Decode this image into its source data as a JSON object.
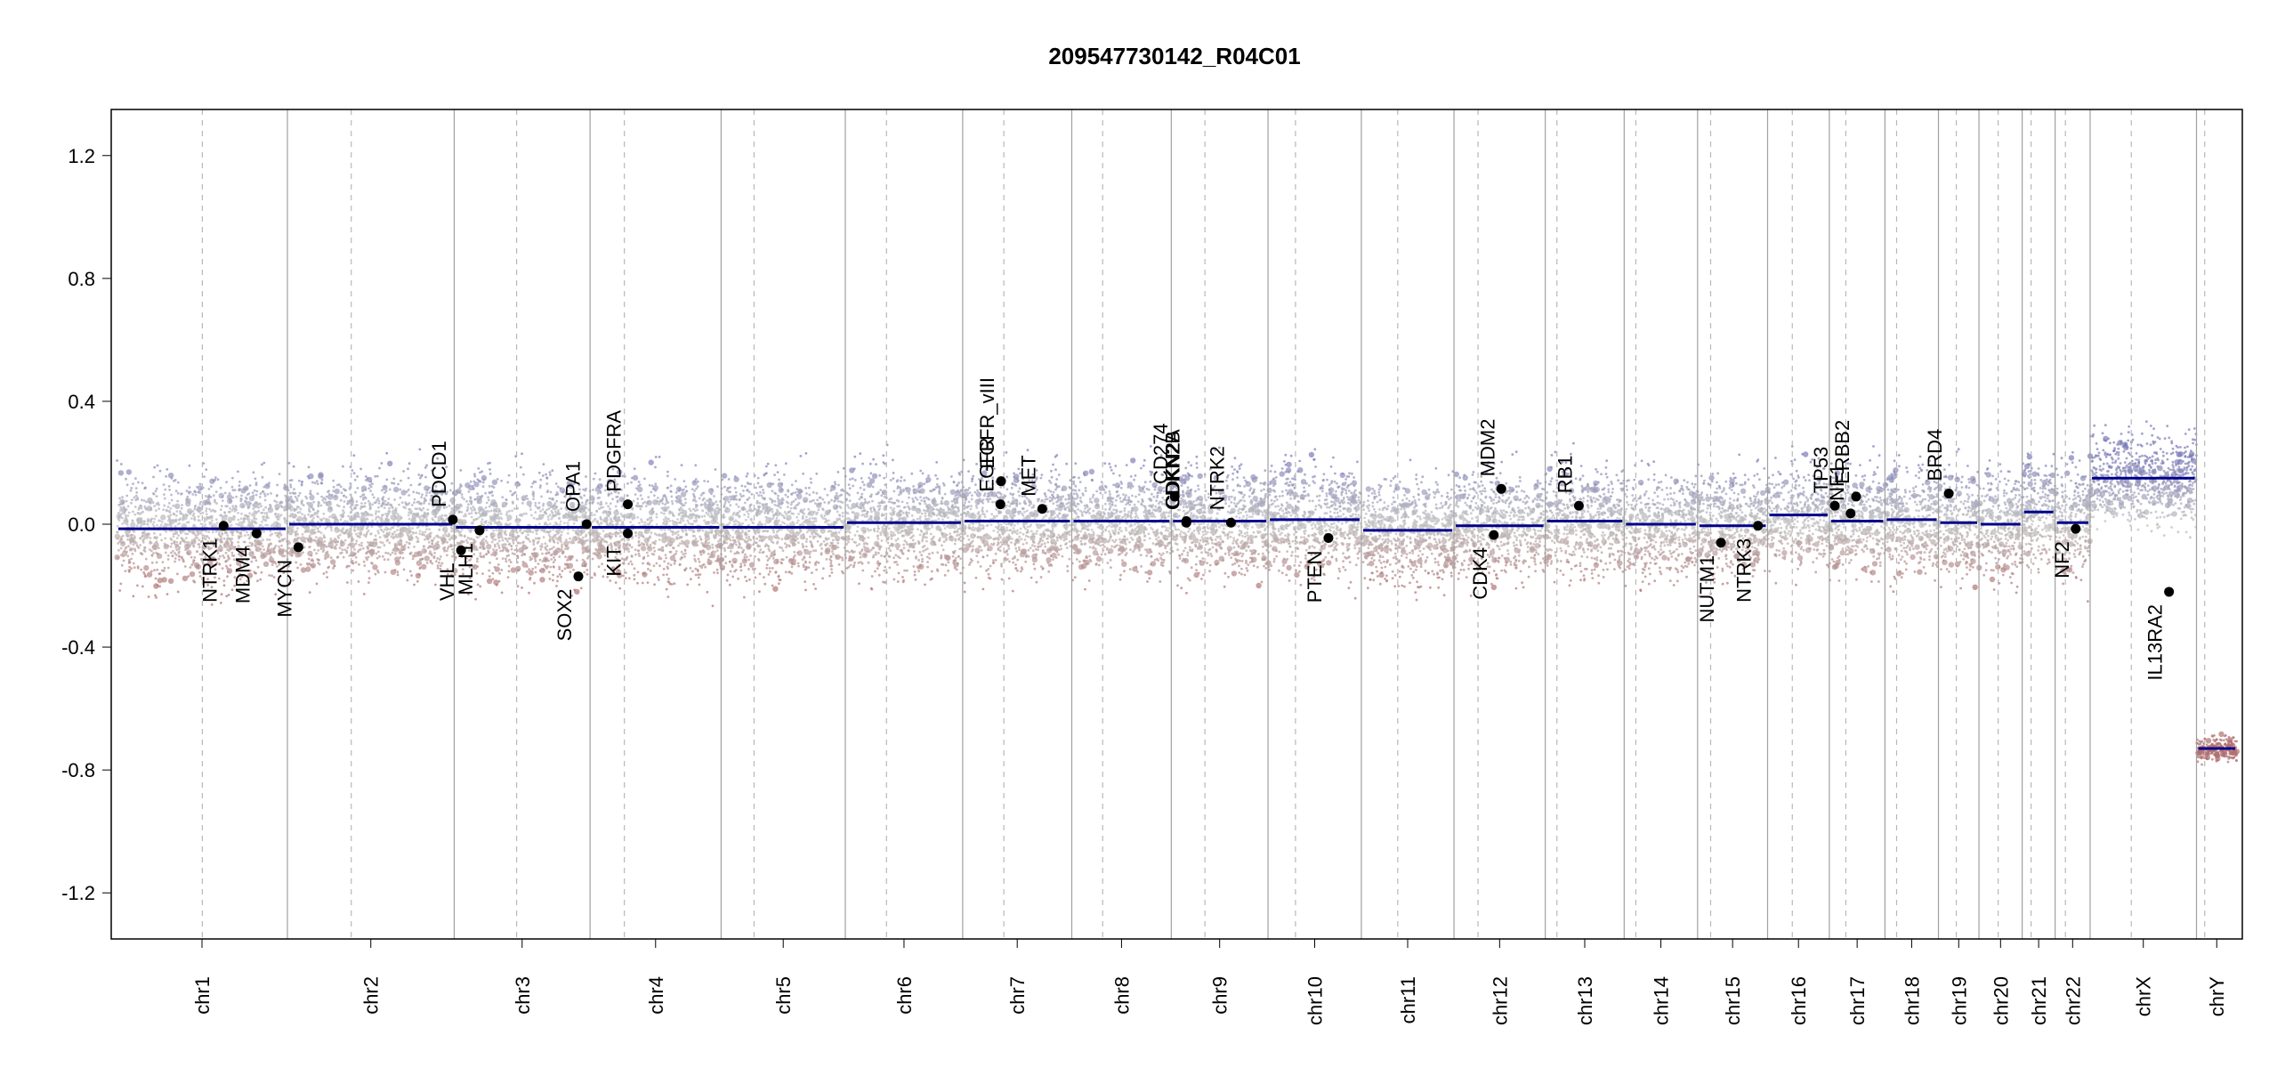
{
  "chart_data": {
    "type": "scatter",
    "title": "209547730142_R04C01",
    "xlabel": "",
    "ylabel": "",
    "ylim": [
      -1.35,
      1.35
    ],
    "yticks": [
      1.2,
      0.8,
      0.4,
      0.0,
      -0.4,
      -0.8,
      -1.2
    ],
    "ytick_labels": [
      "1.2",
      "0.8",
      "0.4",
      "0.0",
      "-0.4",
      "-0.8",
      "-1.2"
    ],
    "grid": false,
    "colors": {
      "segment": "#00008b",
      "gain_points": "#7b7bb8",
      "loss_points": "#b07070",
      "neutral_points": "#c0c0c0",
      "chrom_boundary": "#a0a0a0",
      "centromere": "#b8b8b8",
      "gene_marker": "#000000"
    },
    "chromosomes": [
      {
        "name": "chr1",
        "length": 249,
        "centromere": 125,
        "segment_mean": -0.015
      },
      {
        "name": "chr2",
        "length": 243,
        "centromere": 93,
        "segment_mean": 0.0
      },
      {
        "name": "chr3",
        "length": 198,
        "centromere": 91,
        "segment_mean": -0.01
      },
      {
        "name": "chr4",
        "length": 191,
        "centromere": 50,
        "segment_mean": -0.01
      },
      {
        "name": "chr5",
        "length": 181,
        "centromere": 48,
        "segment_mean": -0.01
      },
      {
        "name": "chr6",
        "length": 171,
        "centromere": 60,
        "segment_mean": 0.005
      },
      {
        "name": "chr7",
        "length": 159,
        "centromere": 60,
        "segment_mean": 0.01
      },
      {
        "name": "chr8",
        "length": 145,
        "centromere": 45,
        "segment_mean": 0.01
      },
      {
        "name": "chr9",
        "length": 141,
        "centromere": 49,
        "segment_mean": 0.01
      },
      {
        "name": "chr10",
        "length": 136,
        "centromere": 40,
        "segment_mean": 0.015
      },
      {
        "name": "chr11",
        "length": 135,
        "centromere": 53,
        "segment_mean": -0.02
      },
      {
        "name": "chr12",
        "length": 133,
        "centromere": 35,
        "segment_mean": -0.005
      },
      {
        "name": "chr13",
        "length": 115,
        "centromere": 17,
        "segment_mean": 0.01
      },
      {
        "name": "chr14",
        "length": 107,
        "centromere": 17,
        "segment_mean": 0.0
      },
      {
        "name": "chr15",
        "length": 102,
        "centromere": 19,
        "segment_mean": -0.005
      },
      {
        "name": "chr16",
        "length": 90,
        "centromere": 36,
        "segment_mean": 0.03
      },
      {
        "name": "chr17",
        "length": 81,
        "centromere": 24,
        "segment_mean": 0.01
      },
      {
        "name": "chr18",
        "length": 78,
        "centromere": 17,
        "segment_mean": 0.015
      },
      {
        "name": "chr19",
        "length": 59,
        "centromere": 26,
        "segment_mean": 0.005
      },
      {
        "name": "chr20",
        "length": 63,
        "centromere": 28,
        "segment_mean": 0.0
      },
      {
        "name": "chr21",
        "length": 48,
        "centromere": 13,
        "segment_mean": 0.04
      },
      {
        "name": "chr22",
        "length": 51,
        "centromere": 15,
        "segment_mean": 0.005
      },
      {
        "name": "chrX",
        "length": 155,
        "centromere": 60,
        "segment_mean": 0.15
      },
      {
        "name": "chrY",
        "length": 59,
        "centromere": 12,
        "segment_mean": -0.73
      }
    ],
    "genes": [
      {
        "name": "NTRK1",
        "chr": "chr1",
        "pos": 156,
        "value": -0.005,
        "label_side": "below"
      },
      {
        "name": "MDM4",
        "chr": "chr1",
        "pos": 204,
        "value": -0.03,
        "label_side": "below"
      },
      {
        "name": "MYCN",
        "chr": "chr2",
        "pos": 16,
        "value": -0.075,
        "label_side": "below"
      },
      {
        "name": "VHL",
        "chr": "chr3",
        "pos": 10,
        "value": -0.085,
        "label_side": "below"
      },
      {
        "name": "PDCD1",
        "chr": "chr2",
        "pos": 241,
        "value": 0.015,
        "label_side": "above"
      },
      {
        "name": "MLH1",
        "chr": "chr3",
        "pos": 37,
        "value": -0.02,
        "label_side": "below"
      },
      {
        "name": "SOX2",
        "chr": "chr3",
        "pos": 181,
        "value": -0.17,
        "label_side": "below"
      },
      {
        "name": "OPA1",
        "chr": "chr3",
        "pos": 193,
        "value": 0.0,
        "label_side": "above"
      },
      {
        "name": "KIT",
        "chr": "chr4",
        "pos": 55,
        "value": -0.03,
        "label_side": "below"
      },
      {
        "name": "PDGFRA",
        "chr": "chr4",
        "pos": 55,
        "value": 0.065,
        "label_side": "above"
      },
      {
        "name": "EGFR",
        "chr": "chr7",
        "pos": 55,
        "value": 0.065,
        "label_side": "above"
      },
      {
        "name": "EGFR_vIII",
        "chr": "chr7",
        "pos": 56,
        "value": 0.14,
        "label_side": "above"
      },
      {
        "name": "MET",
        "chr": "chr7",
        "pos": 116,
        "value": 0.05,
        "label_side": "above"
      },
      {
        "name": "CD274",
        "chr": "chr9",
        "pos": 5,
        "value": 0.09,
        "label_side": "above"
      },
      {
        "name": "CDKN2A",
        "chr": "chr9",
        "pos": 22,
        "value": 0.01,
        "label_side": "above"
      },
      {
        "name": "CDKN2B",
        "chr": "chr9",
        "pos": 22,
        "value": 0.005,
        "label_side": "above"
      },
      {
        "name": "NTRK2",
        "chr": "chr9",
        "pos": 87,
        "value": 0.005,
        "label_side": "above"
      },
      {
        "name": "PTEN",
        "chr": "chr10",
        "pos": 88,
        "value": -0.045,
        "label_side": "below"
      },
      {
        "name": "CDK4",
        "chr": "chr12",
        "pos": 58,
        "value": -0.035,
        "label_side": "below"
      },
      {
        "name": "MDM2",
        "chr": "chr12",
        "pos": 69,
        "value": 0.115,
        "label_side": "above"
      },
      {
        "name": "RB1",
        "chr": "chr13",
        "pos": 49,
        "value": 0.06,
        "label_side": "above"
      },
      {
        "name": "NUTM1",
        "chr": "chr15",
        "pos": 34,
        "value": -0.06,
        "label_side": "below"
      },
      {
        "name": "NTRK3",
        "chr": "chr15",
        "pos": 88,
        "value": -0.005,
        "label_side": "below"
      },
      {
        "name": "TP53",
        "chr": "chr17",
        "pos": 8,
        "value": 0.06,
        "label_side": "above"
      },
      {
        "name": "ERBB2",
        "chr": "chr17",
        "pos": 39,
        "value": 0.09,
        "label_side": "above"
      },
      {
        "name": "NF1",
        "chr": "chr17",
        "pos": 31,
        "value": 0.035,
        "label_side": "above"
      },
      {
        "name": "BRD4",
        "chr": "chr19",
        "pos": 15,
        "value": 0.1,
        "label_side": "above"
      },
      {
        "name": "NF2",
        "chr": "chr22",
        "pos": 30,
        "value": -0.015,
        "label_side": "below"
      },
      {
        "name": "IL13RA2",
        "chr": "chrX",
        "pos": 115,
        "value": -0.22,
        "label_side": "below"
      }
    ]
  }
}
